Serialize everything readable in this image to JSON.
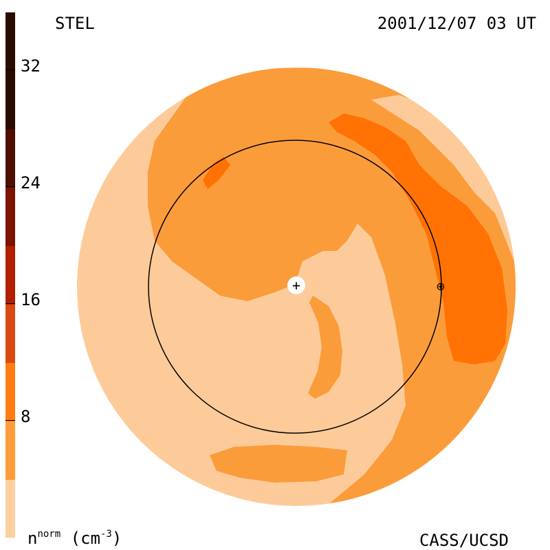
{
  "header": {
    "left_label": "STEL",
    "timestamp": "2001/12/07 03 UT"
  },
  "footer": {
    "units_base": "n",
    "units_sup": "norm",
    "units_rest": " (cm",
    "units_exp": "-3",
    "units_close": ")",
    "credit": "CASS/UCSD"
  },
  "colorbar": {
    "ticks": [
      "32",
      "24",
      "16",
      "8"
    ],
    "segments": [
      "#2b0a00",
      "#4e0e00",
      "#7a1400",
      "#b11e00",
      "#d94a12",
      "#ff7d12",
      "#ff9b3a",
      "#fdd0a0"
    ]
  },
  "map": {
    "colors": {
      "light": "#fdcb9a",
      "mid": "#fb9c3a",
      "dark": "#ff7203"
    },
    "sun_symbol": "+",
    "earth_symbol": "⊕"
  }
}
